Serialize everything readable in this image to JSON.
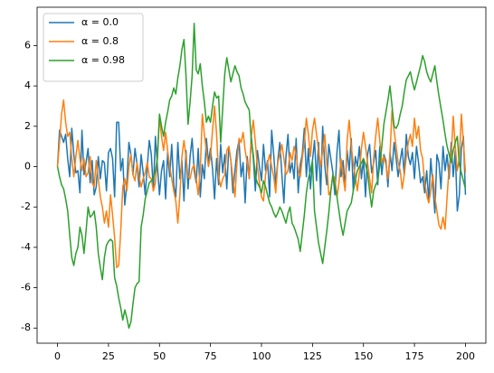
{
  "chart_data": {
    "type": "line",
    "x": [
      0,
      1,
      2,
      3,
      4,
      5,
      6,
      7,
      8,
      9,
      10,
      11,
      12,
      13,
      14,
      15,
      16,
      17,
      18,
      19,
      20,
      21,
      22,
      23,
      24,
      25,
      26,
      27,
      28,
      29,
      30,
      31,
      32,
      33,
      34,
      35,
      36,
      37,
      38,
      39,
      40,
      41,
      42,
      43,
      44,
      45,
      46,
      47,
      48,
      49,
      50,
      51,
      52,
      53,
      54,
      55,
      56,
      57,
      58,
      59,
      60,
      61,
      62,
      63,
      64,
      65,
      66,
      67,
      68,
      69,
      70,
      71,
      72,
      73,
      74,
      75,
      76,
      77,
      78,
      79,
      80,
      81,
      82,
      83,
      84,
      85,
      86,
      87,
      88,
      89,
      90,
      91,
      92,
      93,
      94,
      95,
      96,
      97,
      98,
      99,
      100,
      101,
      102,
      103,
      104,
      105,
      106,
      107,
      108,
      109,
      110,
      111,
      112,
      113,
      114,
      115,
      116,
      117,
      118,
      119,
      120,
      121,
      122,
      123,
      124,
      125,
      126,
      127,
      128,
      129,
      130,
      131,
      132,
      133,
      134,
      135,
      136,
      137,
      138,
      139,
      140,
      141,
      142,
      143,
      144,
      145,
      146,
      147,
      148,
      149,
      150,
      151,
      152,
      153,
      154,
      155,
      156,
      157,
      158,
      159,
      160,
      161,
      162,
      163,
      164,
      165,
      166,
      167,
      168,
      169,
      170,
      171,
      172,
      173,
      174,
      175,
      176,
      177,
      178,
      179,
      180,
      181,
      182,
      183,
      184,
      185,
      186,
      187,
      188,
      189,
      190,
      191,
      192,
      193,
      194,
      195,
      196,
      197,
      198,
      199,
      200
    ],
    "series": [
      {
        "name": "α = 0.0",
        "color": "#1f77b4",
        "values": [
          0,
          1.8,
          1.5,
          1.2,
          1.6,
          0.4,
          -0.5,
          1.9,
          0.6,
          -0.3,
          -0.2,
          -1.3,
          1.8,
          -0.4,
          0.2,
          0.9,
          -0.8,
          0.3,
          -1.4,
          -1.0,
          0.5,
          -0.6,
          0.3,
          0.2,
          -1.2,
          0.7,
          0.9,
          0.4,
          -1.5,
          2.2,
          2.2,
          -0.2,
          0.4,
          -1.9,
          -0.8,
          1.2,
          0.6,
          -0.4,
          0.9,
          0.1,
          -1.0,
          0.6,
          -0.3,
          -1.4,
          0.0,
          1.3,
          0.6,
          -1.2,
          1.5,
          0.0,
          -1.4,
          -0.2,
          0.3,
          -1.6,
          0.7,
          -0.5,
          1.1,
          -0.9,
          -1.5,
          1.2,
          -0.6,
          0.3,
          -1.7,
          0.8,
          -1.1,
          0.5,
          1.4,
          -0.2,
          -0.8,
          0.9,
          -1.5,
          0.1,
          -0.6,
          1.4,
          0.2,
          0.9,
          -0.1,
          -1.6,
          0.4,
          -0.9,
          1.1,
          -0.3,
          0.6,
          -1.1,
          1.0,
          0.3,
          -1.3,
          -0.2,
          0.8,
          1.3,
          -0.5,
          0.2,
          -1.8,
          0.5,
          -0.6,
          1.5,
          0.4,
          -1.2,
          0.8,
          0.0,
          -0.7,
          1.1,
          -0.2,
          0.3,
          -1.5,
          1.8,
          0.6,
          -0.9,
          0.3,
          1.2,
          -0.4,
          -1.8,
          0.5,
          1.6,
          -0.3,
          0.2,
          -0.6,
          1.4,
          -1.3,
          0.1,
          0.6,
          1.9,
          -0.5,
          0.9,
          -1.1,
          0.3,
          1.3,
          -0.7,
          1.2,
          -1.4,
          2.0,
          0.1,
          -0.9,
          1.1,
          0.4,
          -0.3,
          -1.4,
          0.7,
          1.8,
          -0.5,
          0.3,
          -1.0,
          0.8,
          -0.2,
          1.4,
          -1.2,
          0.5,
          0.0,
          1.0,
          -0.6,
          0.4,
          -1.5,
          0.6,
          1.1,
          -0.3,
          0.2,
          0.8,
          -0.9,
          1.0,
          -0.4,
          0.6,
          0.3,
          -1.0,
          0.7,
          -0.2,
          1.2,
          0.4,
          -0.5,
          0.3,
          0.9,
          -0.4,
          1.6,
          0.5,
          0.1,
          0.7,
          -0.6,
          1.0,
          0.2,
          -0.8,
          -0.5,
          -1.3,
          -0.2,
          -1.7,
          0.4,
          -0.9,
          -2.3,
          0.6,
          0.2,
          -1.1,
          1.0,
          -0.2,
          0.6,
          -0.6,
          1.2,
          -0.5,
          0.8,
          -2.2,
          -1.4,
          0.9,
          1.5,
          -1.4
        ]
      },
      {
        "name": "α = 0.8",
        "color": "#ff7f0e",
        "values": [
          0,
          1.2,
          2.6,
          3.3,
          2.2,
          1.5,
          1.7,
          0.4,
          -0.5,
          0.5,
          1.3,
          0.4,
          -0.2,
          0.4,
          -0.5,
          -0.3,
          0.5,
          -0.8,
          -1.0,
          0.3,
          -0.6,
          -1.5,
          -2.0,
          -2.8,
          -2.2,
          -3.0,
          -1.4,
          -2.4,
          -3.5,
          -5.0,
          -4.9,
          -3.2,
          -1.0,
          -0.6,
          -1.2,
          0.0,
          0.6,
          -0.4,
          -0.7,
          0.2,
          -0.5,
          -1.0,
          -0.6,
          -0.3,
          0.2,
          -0.5,
          -0.6,
          -1.2,
          -0.8,
          0.6,
          2.5,
          1.5,
          0.8,
          1.7,
          0.8,
          0.0,
          -0.6,
          -1.2,
          -1.7,
          -2.8,
          -1.4,
          0.5,
          1.3,
          0.5,
          -0.5,
          -0.6,
          -0.1,
          0.1,
          -0.6,
          -1.4,
          -0.2,
          2.6,
          1.6,
          0.8,
          0.0,
          0.5,
          1.8,
          3.0,
          1.6,
          -0.5,
          -1.0,
          -0.6,
          -0.4,
          0.8,
          1.0,
          0.3,
          -0.6,
          -1.5,
          0.2,
          1.4,
          1.2,
          1.7,
          0.8,
          0.2,
          -0.6,
          1.5,
          2.3,
          1.2,
          0.0,
          -0.8,
          -1.5,
          -1.7,
          -0.4,
          0.2,
          0.6,
          0.0,
          -0.5,
          -1.3,
          0.2,
          0.6,
          1.1,
          0.4,
          -0.4,
          -0.2,
          0.7,
          0.3,
          1.0,
          0.6,
          -0.2,
          -0.5,
          0.4,
          1.2,
          2.4,
          1.6,
          0.5,
          1.8,
          2.4,
          1.6,
          0.8,
          0.0,
          0.8,
          1.6,
          0.2,
          -1.4,
          -1.2,
          -0.4,
          -0.6,
          -1.5,
          -0.8,
          0.4,
          -0.5,
          -1.2,
          1.3,
          2.3,
          1.0,
          0.2,
          -0.5,
          -1.2,
          -0.3,
          0.9,
          1.7,
          1.0,
          0.2,
          -0.6,
          -1.3,
          0.4,
          1.5,
          2.4,
          1.3,
          0.2,
          0.5,
          0.1,
          -0.6,
          0.6,
          2.8,
          1.8,
          1.0,
          0.2,
          -0.2,
          -1.1,
          -0.4,
          0.5,
          1.2,
          1.6,
          1.0,
          2.4,
          1.4,
          2.0,
          0.8,
          0.4,
          -0.8,
          -1.4,
          -1.8,
          -1.2,
          -0.4,
          -1.5,
          -2.2,
          -2.9,
          -3.1,
          -2.5,
          -3.1,
          -1.5,
          0.0,
          0.5,
          2.5,
          1.0,
          -0.2,
          0.4,
          2.6,
          1.2,
          -0.3
        ]
      },
      {
        "name": "α = 0.98",
        "color": "#2ca02c",
        "values": [
          0,
          -0.5,
          -0.9,
          -1.1,
          -1.6,
          -2.2,
          -3.4,
          -4.5,
          -4.9,
          -4.3,
          -4.0,
          -3.0,
          -3.4,
          -4.3,
          -3.2,
          -2.0,
          -2.5,
          -2.4,
          -2.2,
          -3.0,
          -4.3,
          -5.0,
          -5.6,
          -4.5,
          -3.9,
          -3.7,
          -3.6,
          -3.7,
          -5.5,
          -5.9,
          -6.5,
          -7.0,
          -7.6,
          -7.1,
          -7.5,
          -8.0,
          -7.7,
          -6.8,
          -6.0,
          -5.8,
          -5.7,
          -3.0,
          -2.4,
          -1.6,
          -1.2,
          -0.8,
          -0.7,
          -0.6,
          -0.2,
          0.4,
          2.6,
          2.0,
          1.5,
          2.2,
          2.7,
          3.3,
          3.5,
          3.9,
          3.6,
          4.4,
          5.0,
          5.8,
          6.3,
          4.5,
          2.1,
          3.2,
          4.5,
          7.1,
          4.8,
          4.6,
          5.1,
          4.0,
          3.2,
          2.2,
          2.5,
          2.2,
          3.0,
          3.7,
          3.4,
          3.5,
          1.2,
          2.9,
          4.6,
          5.4,
          4.8,
          4.2,
          4.6,
          5.0,
          4.7,
          4.5,
          3.9,
          3.6,
          3.2,
          3.0,
          2.8,
          1.3,
          0.6,
          -0.5,
          -0.8,
          -1.0,
          -1.3,
          -0.7,
          -1.0,
          -1.4,
          -1.8,
          -2.0,
          -2.3,
          -2.5,
          -2.3,
          -2.0,
          -2.2,
          -2.5,
          -2.8,
          -2.3,
          -2.0,
          -2.8,
          -3.0,
          -3.3,
          -3.6,
          -4.2,
          -3.3,
          -2.4,
          -1.3,
          -0.6,
          -0.2,
          0.3,
          -2.2,
          -3.0,
          -3.8,
          -4.3,
          -4.8,
          -4.0,
          -3.2,
          -2.3,
          -1.2,
          -0.4,
          -0.9,
          -1.5,
          -2.2,
          -2.9,
          -3.4,
          -2.8,
          -2.2,
          -2.0,
          -1.8,
          -1.2,
          -0.7,
          -0.2,
          0.0,
          0.2,
          0.4,
          0.1,
          -0.3,
          -1.2,
          -2.0,
          -1.2,
          -0.9,
          -0.7,
          0.1,
          1.0,
          2.1,
          2.7,
          3.3,
          4.0,
          3.0,
          2.0,
          1.9,
          2.1,
          2.6,
          3.0,
          3.7,
          4.3,
          4.5,
          4.7,
          4.2,
          3.8,
          4.2,
          4.6,
          5.0,
          5.5,
          5.2,
          4.7,
          4.4,
          4.2,
          4.6,
          5.0,
          4.2,
          3.5,
          2.9,
          2.3,
          1.6,
          1.0,
          0.6,
          0.2,
          0.8,
          1.2,
          1.5,
          0.1,
          -0.3,
          -0.7,
          -1.1
        ]
      }
    ],
    "xlim": [
      -10,
      210
    ],
    "ylim": [
      -8.75,
      7.9
    ],
    "xticks": [
      0,
      25,
      50,
      75,
      100,
      125,
      150,
      175,
      200
    ],
    "yticks": [
      -8,
      -6,
      -4,
      -2,
      0,
      2,
      4,
      6
    ],
    "legend": "upper left",
    "grid": false
  }
}
